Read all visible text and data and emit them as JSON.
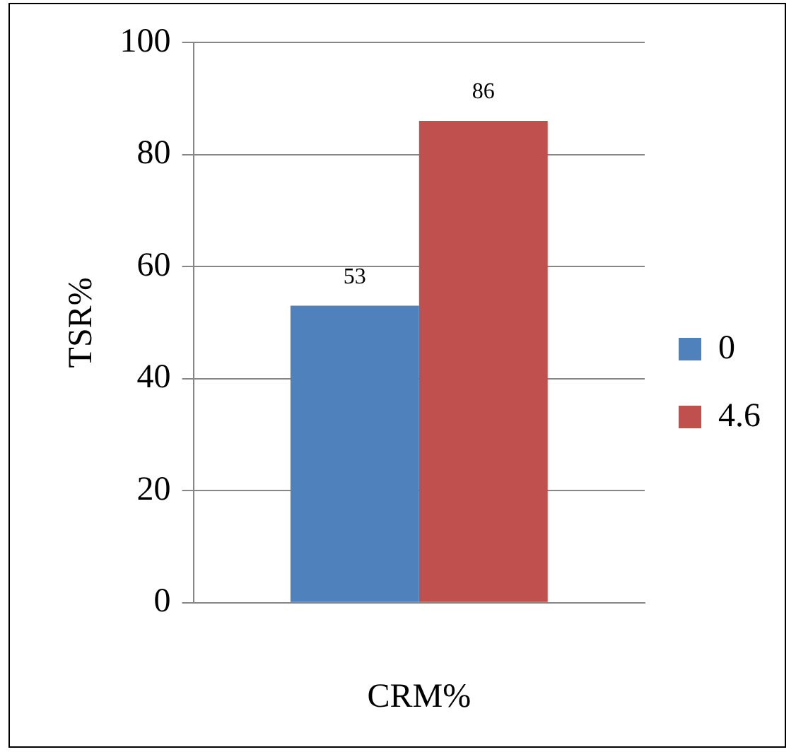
{
  "chart_data": {
    "type": "bar",
    "xlabel": "CRM%",
    "ylabel": "TSR%",
    "categories": [
      null
    ],
    "series": [
      {
        "name": "0",
        "color": "#4f81bd",
        "values": [
          53
        ]
      },
      {
        "name": "4.6",
        "color": "#c0504d",
        "values": [
          86
        ]
      }
    ],
    "ylim": [
      0,
      100
    ],
    "yticks": [
      0,
      20,
      40,
      60,
      80,
      100
    ],
    "grid": "y",
    "legend": "right",
    "data_labels": true
  }
}
